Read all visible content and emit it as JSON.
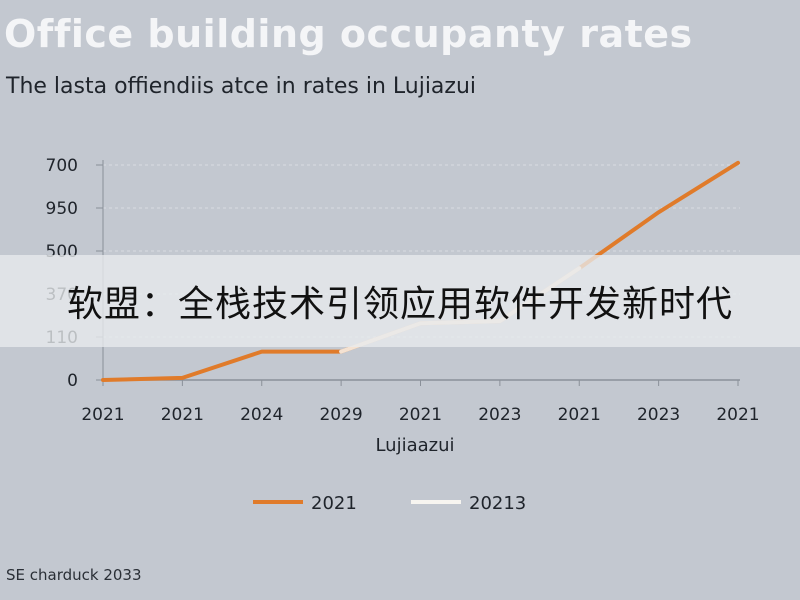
{
  "chart_data": {
    "type": "line",
    "title": "Office building occupanty rates",
    "subtitle": "The lasta offiendiis atce in rates in Lujiazui",
    "xlabel": "Lujiaazui",
    "ylabel": "",
    "categories": [
      "2021",
      "2021",
      "2024",
      "2029",
      "2021",
      "2023",
      "2021",
      "2023",
      "2021"
    ],
    "y_ticks": [
      {
        "label": "0",
        "value": 0
      },
      {
        "label": "110",
        "value": 1
      },
      {
        "label": "370",
        "value": 2
      },
      {
        "label": "500",
        "value": 3
      },
      {
        "label": "950",
        "value": 4
      },
      {
        "label": "700",
        "value": 5
      }
    ],
    "ylim": [
      0,
      5
    ],
    "grid": true,
    "legend_position": "bottom",
    "series": [
      {
        "name": "2021",
        "color": "#e07b2a",
        "values": [
          0,
          0.05,
          0.66,
          0.66,
          1.32,
          1.37,
          2.6,
          3.9,
          5.05
        ]
      },
      {
        "name": "20213",
        "color": "#f7f5f0",
        "values": [
          0,
          0.05,
          0.66,
          0.66,
          1.32,
          1.37,
          2.6,
          3.9,
          5.05
        ]
      }
    ]
  },
  "banner": "软盟：全栈技术引领应用软件开发新时代",
  "source": "SE charduck 2033"
}
